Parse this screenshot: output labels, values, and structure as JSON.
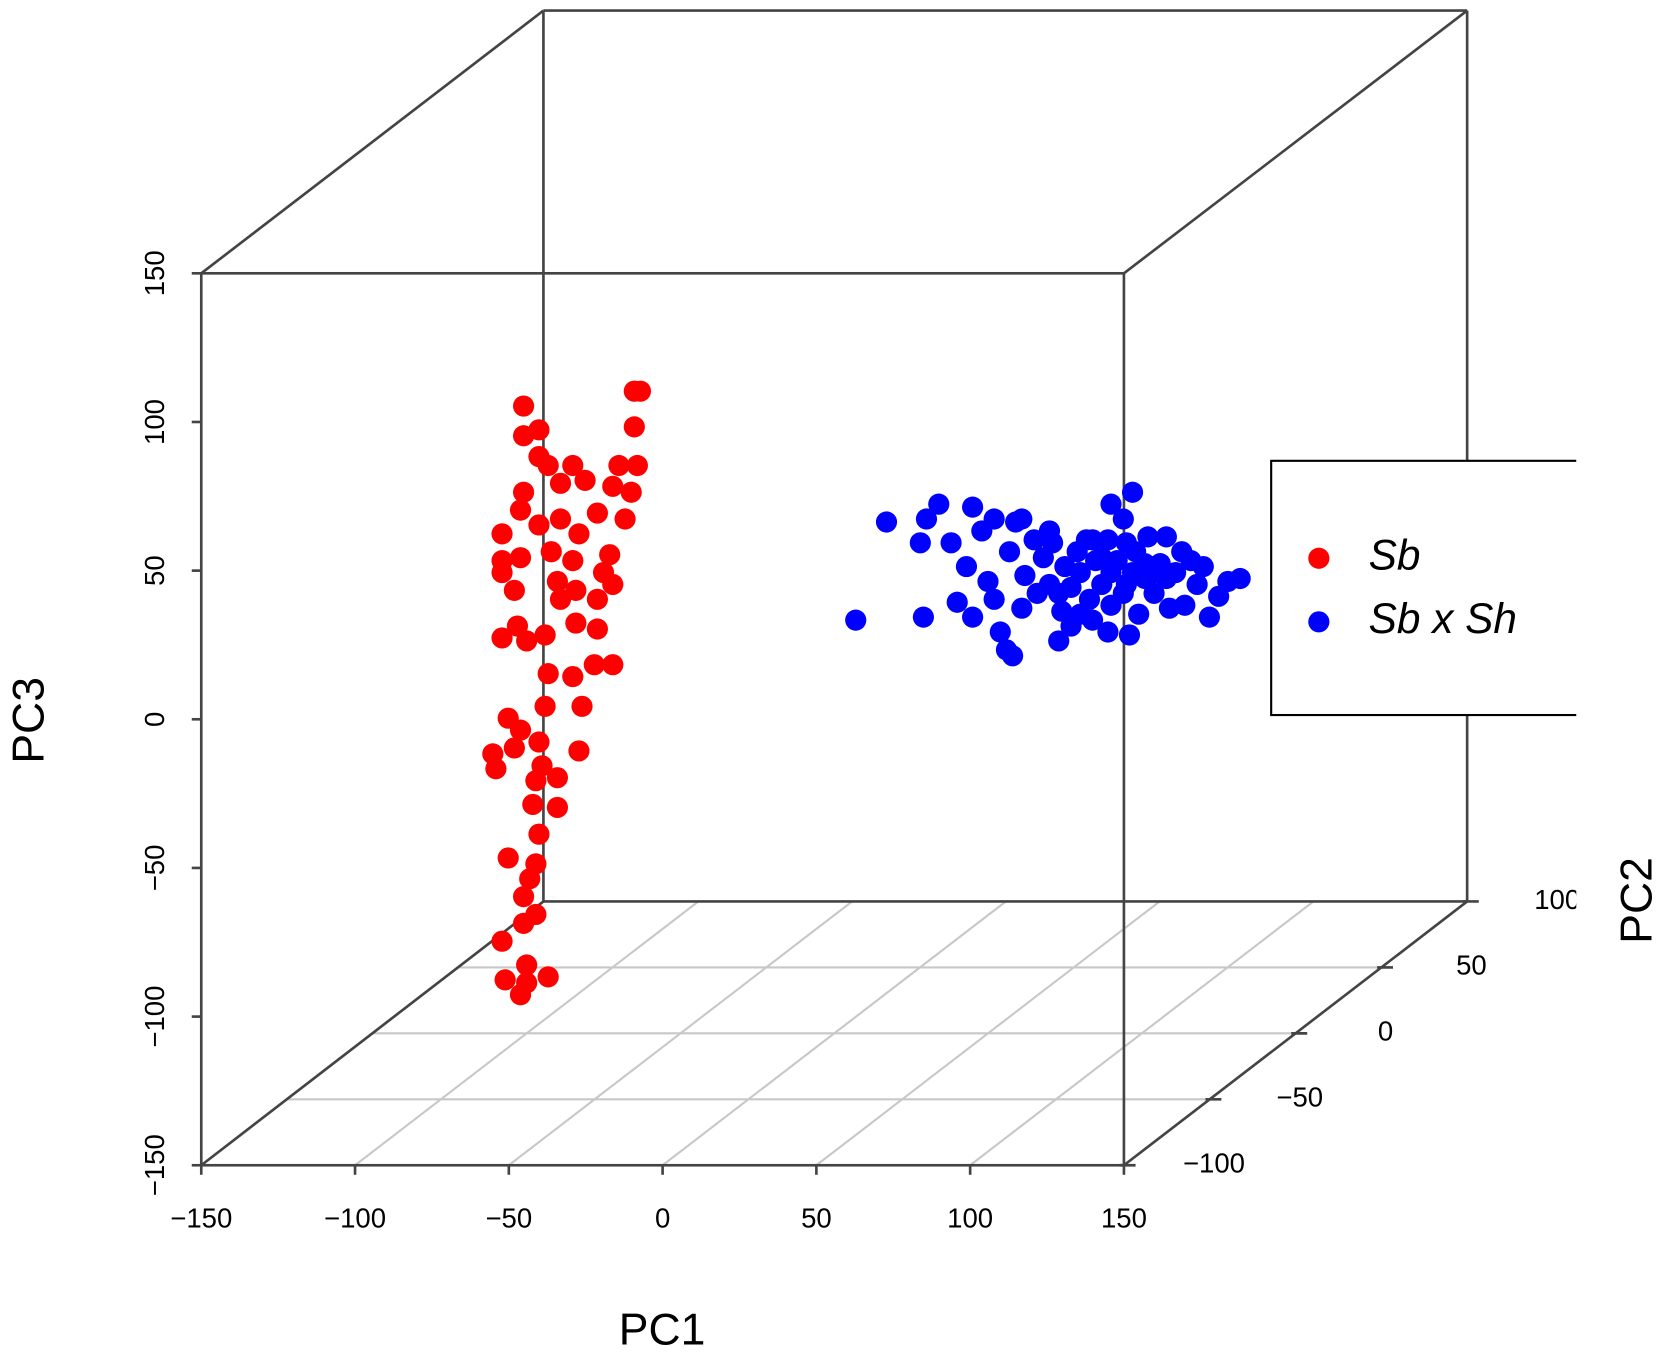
{
  "chart_data": {
    "type": "scatter3d",
    "xlabel": "PC1",
    "ylabel": "PC2",
    "zlabel": "PC3",
    "xlim": [
      -150,
      150
    ],
    "ylim": [
      -100,
      100
    ],
    "zlim": [
      -150,
      150
    ],
    "xticks": [
      {
        "value": -150,
        "label": "−150"
      },
      {
        "value": -100,
        "label": "−100"
      },
      {
        "value": -50,
        "label": "−50"
      },
      0,
      50,
      100,
      150
    ],
    "yticks": [
      {
        "value": -100,
        "label": "−100"
      },
      {
        "value": -50,
        "label": "−50"
      },
      0,
      50,
      100
    ],
    "zticks": [
      {
        "value": -150,
        "label": "−150"
      },
      {
        "value": -100,
        "label": "−100"
      },
      {
        "value": -50,
        "label": "−50"
      },
      0,
      50,
      100,
      150
    ],
    "grid": true,
    "legend": "right",
    "series": [
      {
        "name": "Sb",
        "color": "#ff0000",
        "x": [
          -63,
          -65,
          -101,
          -65,
          -101,
          -96,
          -96,
          -93,
          -85,
          -64,
          -70,
          -101,
          -89,
          -81,
          -72,
          -66,
          -102,
          -96,
          -89,
          -77,
          -68,
          -108,
          -83,
          -92,
          -102,
          -73,
          -108,
          -85,
          -108,
          -90,
          -72,
          -84,
          -104,
          -89,
          -77,
          -75,
          -103,
          -84,
          -94,
          -77,
          -108,
          -100,
          -93,
          -85,
          -72,
          -78,
          -106,
          -94,
          -102,
          -82,
          -96,
          -111,
          -83,
          -104,
          -110,
          -95,
          -97,
          -90,
          -98,
          -90,
          -96,
          -106,
          -97,
          -99,
          -101,
          -97,
          -101,
          -108,
          -100,
          -107,
          -102,
          -93,
          -100
        ],
        "y": [
          0,
          0,
          0,
          0,
          0,
          0,
          0,
          0,
          0,
          0,
          0,
          0,
          0,
          0,
          0,
          0,
          0,
          0,
          0,
          0,
          0,
          0,
          0,
          0,
          0,
          0,
          0,
          0,
          0,
          0,
          0,
          0,
          0,
          0,
          0,
          0,
          0,
          0,
          0,
          0,
          0,
          0,
          0,
          0,
          0,
          0,
          0,
          0,
          0,
          0,
          0,
          0,
          0,
          0,
          0,
          0,
          0,
          0,
          0,
          0,
          0,
          0,
          0,
          0,
          0,
          0,
          0,
          0,
          0,
          0,
          0,
          0,
          0
        ],
        "z": [
          66,
          66,
          61,
          54,
          51,
          53,
          44,
          41,
          41,
          41,
          41,
          32,
          35,
          36,
          34,
          32,
          26,
          21,
          23,
          25,
          23,
          18,
          18,
          12,
          10,
          11,
          9,
          9,
          5,
          2,
          1,
          -1,
          -1,
          -4,
          -4,
          5,
          -13,
          -12,
          -16,
          -14,
          -17,
          -18,
          -29,
          -30,
          -26,
          -26,
          -44,
          -40,
          -48,
          -40,
          -52,
          -56,
          -55,
          -54,
          -61,
          -60,
          -65,
          -64,
          -73,
          -74,
          -83,
          -91,
          -93,
          -98,
          -104,
          -110,
          -113,
          -119,
          -127,
          -132,
          -137,
          -131,
          -133
        ]
      },
      {
        "name": "Sb x Sh",
        "color": "#0000ff",
        "x": [
          7,
          17,
          28,
          30,
          34,
          29,
          38,
          40,
          43,
          45,
          45,
          48,
          50,
          52,
          52,
          54,
          56,
          58,
          57,
          59,
          61,
          62,
          61,
          65,
          68,
          70,
          71,
          73,
          74,
          75,
          77,
          79,
          80,
          82,
          83,
          84,
          85,
          87,
          89,
          90,
          90,
          92,
          94,
          95,
          96,
          97,
          98,
          99,
          101,
          102,
          104,
          106,
          108,
          109,
          111,
          113,
          114,
          116,
          118,
          120,
          122,
          125,
          128,
          132,
          73,
          70,
          80,
          87,
          94,
          101,
          77,
          90,
          84,
          97,
          104,
          89,
          66,
          95,
          108
        ],
        "y": [
          0,
          0,
          0,
          0,
          0,
          0,
          0,
          0,
          0,
          0,
          0,
          0,
          0,
          0,
          0,
          0,
          0,
          0,
          0,
          0,
          0,
          0,
          0,
          0,
          0,
          0,
          0,
          0,
          0,
          0,
          0,
          0,
          0,
          0,
          0,
          0,
          0,
          0,
          0,
          0,
          0,
          0,
          0,
          0,
          0,
          0,
          0,
          0,
          0,
          0,
          0,
          0,
          0,
          0,
          0,
          0,
          0,
          0,
          0,
          0,
          0,
          0,
          0,
          0,
          0,
          0,
          0,
          0,
          0,
          0,
          0,
          0,
          0,
          0,
          0,
          0,
          0,
          0,
          0
        ],
        "z": [
          -11,
          22,
          15,
          23,
          28,
          -10,
          15,
          -5,
          7,
          27,
          -10,
          19,
          2,
          23,
          -4,
          -15,
          -21,
          -23,
          12,
          22,
          23,
          4,
          -7,
          16,
          10,
          1,
          15,
          -18,
          -8,
          7,
          0,
          12,
          5,
          16,
          -4,
          -11,
          9,
          1,
          16,
          28,
          -6,
          9,
          23,
          1,
          -16,
          32,
          12,
          -9,
          3,
          17,
          -2,
          8,
          17,
          -7,
          5,
          12,
          -6,
          9,
          1,
          7,
          -10,
          -3,
          2,
          3,
          -2,
          19,
          -9,
          10,
          -2,
          8,
          -13,
          5,
          16,
          5,
          5,
          -15,
          -2,
          15,
          3
        ]
      }
    ]
  }
}
